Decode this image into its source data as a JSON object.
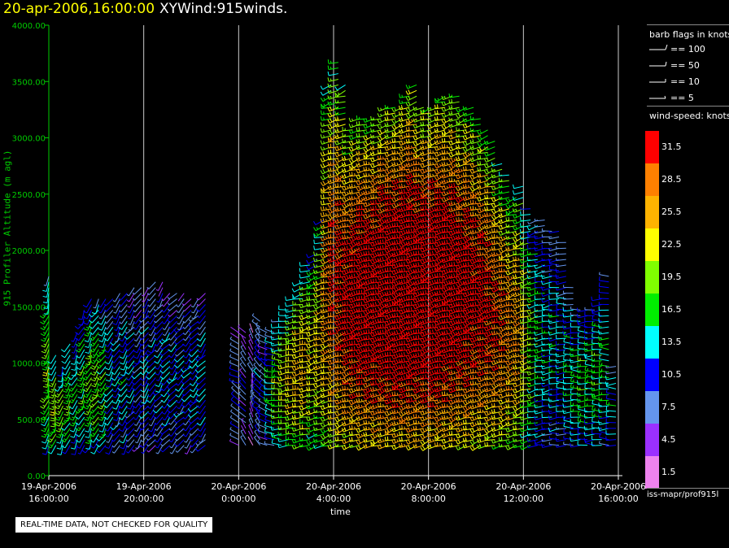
{
  "title": {
    "date": "20-apr-2006,16:00:00",
    "name": "XYWind:915winds."
  },
  "quality_note": "REAL-TIME DATA, NOT CHECKED FOR QUALITY",
  "credit": "iss-mapr/prof915l",
  "legend": {
    "barb_title": "barb flags in knots",
    "barbs": [
      {
        "label": "== 100"
      },
      {
        "label": "== 50"
      },
      {
        "label": "== 10"
      },
      {
        "label": "== 5"
      }
    ],
    "speed_title": "wind-speed: knots",
    "colorbar": [
      {
        "label": "31.5",
        "color": "#ff0000"
      },
      {
        "label": "28.5",
        "color": "#ff8000"
      },
      {
        "label": "25.5",
        "color": "#ffb300"
      },
      {
        "label": "22.5",
        "color": "#ffff00"
      },
      {
        "label": "19.5",
        "color": "#80ff00"
      },
      {
        "label": "16.5",
        "color": "#00ee00"
      },
      {
        "label": "13.5",
        "color": "#00ffff"
      },
      {
        "label": "10.5",
        "color": "#0000ff"
      },
      {
        "label": "7.5",
        "color": "#6495ed"
      },
      {
        "label": "4.5",
        "color": "#9b30ff"
      },
      {
        "label": "1.5",
        "color": "#ee82ee"
      }
    ]
  },
  "chart_data": {
    "type": "wind-barb time-height",
    "title": "XYWind:915winds.",
    "ylabel": "915 Profiler Altitude (m agl)",
    "xlabel": "time",
    "ylim": [
      0,
      4000
    ],
    "yticks": [
      "0.00",
      "500.00",
      "1000.00",
      "1500.00",
      "2000.00",
      "2500.00",
      "3000.00",
      "3500.00",
      "4000.00"
    ],
    "xticks": [
      {
        "date": "19-Apr-2006",
        "time": "16:00:00"
      },
      {
        "date": "19-Apr-2006",
        "time": "20:00:00"
      },
      {
        "date": "20-Apr-2006",
        "time": "0:00:00"
      },
      {
        "date": "20-Apr-2006",
        "time": "4:00:00"
      },
      {
        "date": "20-Apr-2006",
        "time": "8:00:00"
      },
      {
        "date": "20-Apr-2006",
        "time": "12:00:00"
      },
      {
        "date": "20-Apr-2006",
        "time": "16:00:00"
      }
    ],
    "grid": "vertical lines at x ticks",
    "profiles": [
      {
        "hours": 0.0,
        "top": 1800,
        "speed": 17,
        "dir": 200
      },
      {
        "hours": 0.3,
        "top": 1100,
        "speed": 18,
        "dir": 200
      },
      {
        "hours": 0.6,
        "top": 1000,
        "speed": 17,
        "dir": 200
      },
      {
        "hours": 0.9,
        "top": 1200,
        "speed": 16,
        "dir": 205
      },
      {
        "hours": 1.2,
        "top": 1300,
        "speed": 14,
        "dir": 205
      },
      {
        "hours": 1.5,
        "top": 1500,
        "speed": 15,
        "dir": 205
      },
      {
        "hours": 1.8,
        "top": 1600,
        "speed": 16,
        "dir": 205
      },
      {
        "hours": 2.1,
        "top": 1600,
        "speed": 17,
        "dir": 210
      },
      {
        "hours": 2.4,
        "top": 1600,
        "speed": 15,
        "dir": 210
      },
      {
        "hours": 2.7,
        "top": 1600,
        "speed": 12,
        "dir": 210
      },
      {
        "hours": 3.0,
        "top": 1650,
        "speed": 11,
        "dir": 210
      },
      {
        "hours": 3.3,
        "top": 1650,
        "speed": 12,
        "dir": 210
      },
      {
        "hours": 3.6,
        "top": 1700,
        "speed": 10,
        "dir": 215
      },
      {
        "hours": 3.9,
        "top": 1700,
        "speed": 9,
        "dir": 215
      },
      {
        "hours": 4.2,
        "top": 1700,
        "speed": 11,
        "dir": 215
      },
      {
        "hours": 4.5,
        "top": 1750,
        "speed": 10,
        "dir": 215
      },
      {
        "hours": 4.8,
        "top": 1750,
        "speed": 10,
        "dir": 215
      },
      {
        "hours": 5.1,
        "top": 1650,
        "speed": 11,
        "dir": 220
      },
      {
        "hours": 5.4,
        "top": 1650,
        "speed": 10,
        "dir": 220
      },
      {
        "hours": 5.7,
        "top": 1650,
        "speed": 10,
        "dir": 220
      },
      {
        "hours": 6.0,
        "top": 1600,
        "speed": 10,
        "dir": 220
      },
      {
        "hours": 6.3,
        "top": 1600,
        "speed": 11,
        "dir": 220
      },
      {
        "hours": 6.6,
        "top": 1650,
        "speed": 11,
        "dir": 220
      },
      {
        "hours": 8.0,
        "top": 1300,
        "speed": 8,
        "dir": 300
      },
      {
        "hours": 8.3,
        "top": 1300,
        "speed": 7,
        "dir": 320
      },
      {
        "hours": 8.6,
        "top": 1300,
        "speed": 6,
        "dir": 340
      },
      {
        "hours": 8.9,
        "top": 1400,
        "speed": 9,
        "dir": 320
      },
      {
        "hours": 9.2,
        "top": 1300,
        "speed": 8,
        "dir": 300
      },
      {
        "hours": 9.5,
        "top": 1300,
        "speed": 13,
        "dir": 280
      },
      {
        "hours": 9.8,
        "top": 1400,
        "speed": 17,
        "dir": 270
      },
      {
        "hours": 10.1,
        "top": 1500,
        "speed": 19,
        "dir": 260
      },
      {
        "hours": 10.4,
        "top": 1600,
        "speed": 21,
        "dir": 260
      },
      {
        "hours": 10.7,
        "top": 1750,
        "speed": 22,
        "dir": 255
      },
      {
        "hours": 11.0,
        "top": 1900,
        "speed": 22,
        "dir": 255
      },
      {
        "hours": 11.3,
        "top": 2000,
        "speed": 20,
        "dir": 250
      },
      {
        "hours": 11.6,
        "top": 2300,
        "speed": 21,
        "dir": 250
      },
      {
        "hours": 11.9,
        "top": 3500,
        "speed": 24,
        "dir": 250
      },
      {
        "hours": 12.2,
        "top": 3700,
        "speed": 27,
        "dir": 250
      },
      {
        "hours": 12.5,
        "top": 3500,
        "speed": 28,
        "dir": 250
      },
      {
        "hours": 12.8,
        "top": 3100,
        "speed": 29,
        "dir": 250
      },
      {
        "hours": 13.1,
        "top": 3200,
        "speed": 30,
        "dir": 250
      },
      {
        "hours": 13.4,
        "top": 3200,
        "speed": 31,
        "dir": 250
      },
      {
        "hours": 13.7,
        "top": 3200,
        "speed": 31,
        "dir": 250
      },
      {
        "hours": 14.0,
        "top": 3200,
        "speed": 31,
        "dir": 250
      },
      {
        "hours": 14.3,
        "top": 3300,
        "speed": 32,
        "dir": 250
      },
      {
        "hours": 14.6,
        "top": 3300,
        "speed": 32,
        "dir": 250
      },
      {
        "hours": 14.9,
        "top": 3300,
        "speed": 32,
        "dir": 250
      },
      {
        "hours": 15.2,
        "top": 3400,
        "speed": 32,
        "dir": 250
      },
      {
        "hours": 15.5,
        "top": 3500,
        "speed": 32,
        "dir": 250
      },
      {
        "hours": 15.8,
        "top": 3300,
        "speed": 32,
        "dir": 250
      },
      {
        "hours": 16.1,
        "top": 3300,
        "speed": 32,
        "dir": 250
      },
      {
        "hours": 16.4,
        "top": 3300,
        "speed": 32,
        "dir": 250
      },
      {
        "hours": 16.7,
        "top": 3400,
        "speed": 32,
        "dir": 250
      },
      {
        "hours": 17.0,
        "top": 3400,
        "speed": 31,
        "dir": 250
      },
      {
        "hours": 17.3,
        "top": 3400,
        "speed": 31,
        "dir": 250
      },
      {
        "hours": 17.6,
        "top": 3300,
        "speed": 30,
        "dir": 250
      },
      {
        "hours": 17.9,
        "top": 3300,
        "speed": 30,
        "dir": 250
      },
      {
        "hours": 18.2,
        "top": 3200,
        "speed": 29,
        "dir": 250
      },
      {
        "hours": 18.5,
        "top": 3100,
        "speed": 29,
        "dir": 250
      },
      {
        "hours": 18.8,
        "top": 3000,
        "speed": 28,
        "dir": 250
      },
      {
        "hours": 19.1,
        "top": 2800,
        "speed": 27,
        "dir": 250
      },
      {
        "hours": 19.4,
        "top": 2700,
        "speed": 26,
        "dir": 250
      },
      {
        "hours": 19.7,
        "top": 2500,
        "speed": 25,
        "dir": 250
      },
      {
        "hours": 20.0,
        "top": 2600,
        "speed": 24,
        "dir": 250
      },
      {
        "hours": 20.3,
        "top": 2400,
        "speed": 20,
        "dir": 255
      },
      {
        "hours": 20.6,
        "top": 2300,
        "speed": 16,
        "dir": 255
      },
      {
        "hours": 20.9,
        "top": 2300,
        "speed": 13,
        "dir": 260
      },
      {
        "hours": 21.2,
        "top": 2200,
        "speed": 12,
        "dir": 260
      },
      {
        "hours": 21.5,
        "top": 2200,
        "speed": 12,
        "dir": 265
      },
      {
        "hours": 21.8,
        "top": 2100,
        "speed": 11,
        "dir": 265
      },
      {
        "hours": 22.1,
        "top": 1700,
        "speed": 13,
        "dir": 270
      },
      {
        "hours": 22.4,
        "top": 1500,
        "speed": 14,
        "dir": 270
      },
      {
        "hours": 22.7,
        "top": 1500,
        "speed": 15,
        "dir": 270
      },
      {
        "hours": 23.0,
        "top": 1500,
        "speed": 14,
        "dir": 270
      },
      {
        "hours": 23.3,
        "top": 1600,
        "speed": 15,
        "dir": 270
      },
      {
        "hours": 23.6,
        "top": 1800,
        "speed": 14,
        "dir": 270
      },
      {
        "hours": 23.9,
        "top": 1000,
        "speed": 12,
        "dir": 270
      }
    ]
  }
}
